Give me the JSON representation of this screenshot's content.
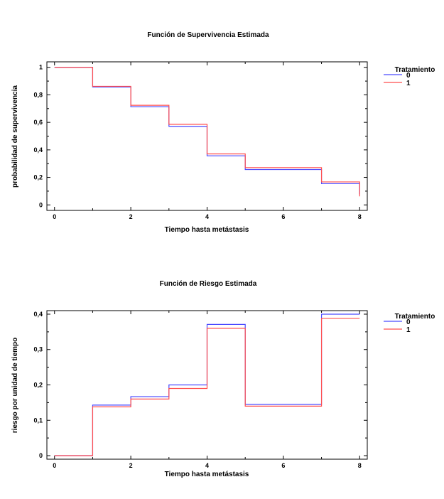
{
  "chart_data": [
    {
      "type": "line",
      "step": true,
      "title": "Función de Supervivencia Estimada",
      "xlabel": "Tiempo hasta metástasis",
      "ylabel": "probabilidad de supervivencia",
      "xlim": [
        -0.2,
        8.2
      ],
      "ylim": [
        -0.04,
        1.04
      ],
      "xticks": [
        0,
        2,
        4,
        6,
        8
      ],
      "xtick_labels": [
        "0",
        "2",
        "4",
        "6",
        "8"
      ],
      "yticks": [
        0,
        0.2,
        0.4,
        0.6,
        0.8,
        1
      ],
      "ytick_labels": [
        "0",
        "0,2",
        "0,4",
        "0,6",
        "0,8",
        "1"
      ],
      "grid": false,
      "legend_title": "Tratamiento",
      "legend_position": "top-right-outside",
      "series": [
        {
          "name": "0",
          "color": "#4a4aff",
          "x": [
            0,
            1,
            2,
            3,
            4,
            5,
            7,
            8
          ],
          "y": [
            1.0,
            0.857,
            0.714,
            0.571,
            0.357,
            0.257,
            0.154,
            0.077
          ]
        },
        {
          "name": "1",
          "color": "#ff4d4d",
          "x": [
            0,
            1,
            2,
            3,
            4,
            5,
            7,
            8
          ],
          "y": [
            1.0,
            0.862,
            0.724,
            0.586,
            0.371,
            0.271,
            0.167,
            0.062
          ]
        }
      ]
    },
    {
      "type": "line",
      "step": true,
      "title": "Función de Riesgo Estimada",
      "xlabel": "Tiempo hasta metástasis",
      "ylabel": "riesgo por unidad de tiempo",
      "xlim": [
        -0.2,
        8.2
      ],
      "ylim": [
        -0.01,
        0.41
      ],
      "xticks": [
        0,
        2,
        4,
        6,
        8
      ],
      "xtick_labels": [
        "0",
        "2",
        "4",
        "6",
        "8"
      ],
      "yticks": [
        0,
        0.1,
        0.2,
        0.3,
        0.4
      ],
      "ytick_labels": [
        "0",
        "0,1",
        "0,2",
        "0,3",
        "0,4"
      ],
      "grid": false,
      "legend_title": "Tratamiento",
      "legend_position": "top-right-outside",
      "series": [
        {
          "name": "0",
          "color": "#4a4aff",
          "x": [
            0,
            1,
            2,
            3,
            4,
            5,
            7,
            8
          ],
          "y": [
            0.0,
            0.143,
            0.167,
            0.2,
            0.371,
            0.145,
            0.4,
            0.4
          ]
        },
        {
          "name": "1",
          "color": "#ff4d4d",
          "x": [
            0,
            1,
            2,
            3,
            4,
            5,
            7,
            8
          ],
          "y": [
            0.0,
            0.138,
            0.16,
            0.19,
            0.36,
            0.14,
            0.388,
            0.388
          ]
        }
      ]
    }
  ]
}
